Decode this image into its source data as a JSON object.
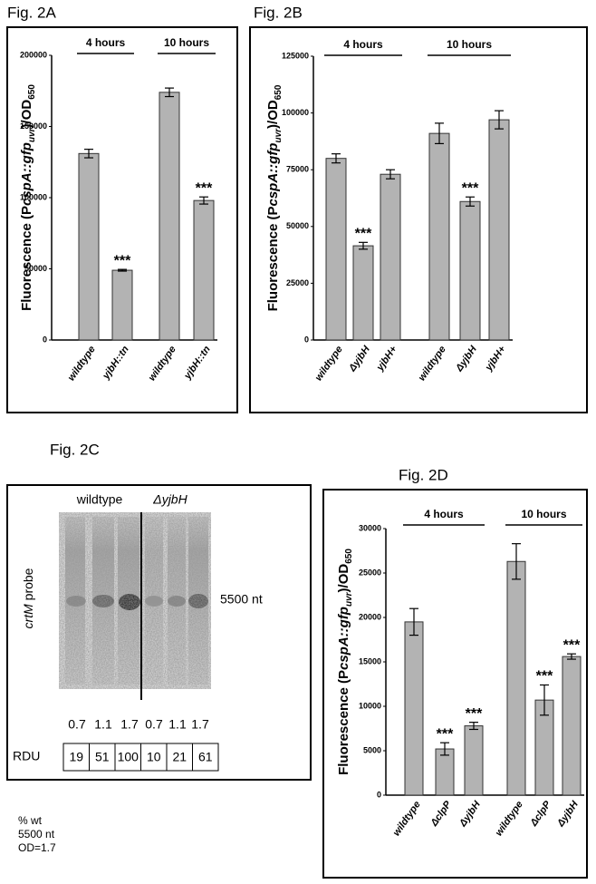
{
  "chart_data": [
    {
      "type": "bar",
      "title": "Fig. 2A",
      "ylabel": [
        "Fluorescence (P",
        "cspA::gfp",
        "uvr",
        ")/OD",
        "650"
      ],
      "groups": [
        "4 hours",
        "10 hours"
      ],
      "categories": [
        "wildtype",
        "yjbH::tn",
        "wildtype",
        "yjbH::tn"
      ],
      "values": [
        131000,
        49000,
        174000,
        98000
      ],
      "errors": [
        3000,
        600,
        3000,
        2500
      ],
      "significance": [
        null,
        "***",
        null,
        "***"
      ],
      "color": "#b3b3b3",
      "ylim": [
        0,
        200000
      ],
      "yticks": [
        0,
        50000,
        100000,
        150000,
        200000
      ]
    },
    {
      "type": "bar",
      "title": "Fig. 2B",
      "ylabel": [
        "Fluorescence (P",
        "cspA::gfp",
        "uvr",
        ")/OD",
        "650"
      ],
      "groups": [
        "4 hours",
        "10 hours"
      ],
      "categories": [
        "wildtype",
        "ΔyjbH",
        "yjbH+",
        "wildtype",
        "ΔyjbH",
        "yjbH+"
      ],
      "values": [
        80000,
        41500,
        73000,
        91000,
        61000,
        97000
      ],
      "errors": [
        2000,
        1500,
        2000,
        4500,
        2000,
        4000
      ],
      "significance": [
        null,
        "***",
        null,
        null,
        "***",
        null
      ],
      "color": "#b3b3b3",
      "ylim": [
        0,
        125000
      ],
      "yticks": [
        0,
        25000,
        50000,
        75000,
        100000,
        125000
      ]
    },
    {
      "type": "bar",
      "title": "Fig. 2D",
      "ylabel": [
        "Fluorescence (P",
        "cspA::gfp",
        "uvr",
        ")/OD",
        "650"
      ],
      "groups": [
        "4 hours",
        "10 hours"
      ],
      "categories": [
        "wildtype",
        "ΔclpP",
        "ΔyjbH",
        "wildtype",
        "ΔclpP",
        "ΔyjbH"
      ],
      "values": [
        19500,
        5200,
        7800,
        26300,
        10700,
        15600
      ],
      "errors": [
        1500,
        700,
        400,
        2000,
        1700,
        300
      ],
      "significance": [
        null,
        "***",
        "***",
        null,
        "***",
        "***"
      ],
      "color": "#b3b3b3",
      "ylim": [
        0,
        30000
      ],
      "yticks": [
        0,
        5000,
        10000,
        15000,
        20000,
        25000,
        30000
      ]
    }
  ],
  "panel_c": {
    "title": "Fig. 2C",
    "columns": [
      "wildtype",
      "ΔyjbH"
    ],
    "probe": [
      "crtM",
      " probe"
    ],
    "band": "5500 nt",
    "lanes": [
      0.7,
      1.1,
      1.7,
      0.7,
      1.1,
      1.7
    ],
    "rdu_label": "RDU",
    "rdu": [
      19,
      51,
      100,
      10,
      21,
      61
    ],
    "note": [
      "% wt",
      "5500 nt",
      "OD=1.7"
    ]
  }
}
